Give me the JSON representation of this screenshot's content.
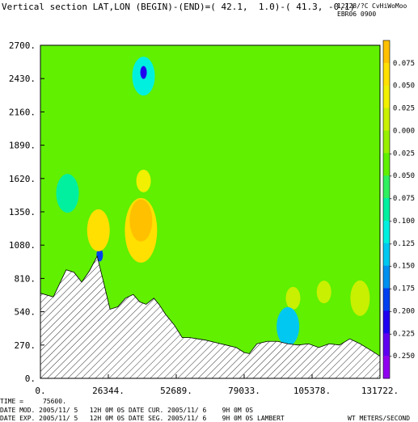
{
  "header": {
    "title": "Vertical section LAT,LON (BEGIN)-(END)=( 42.1,  1.0)-( 41.3, -0.1)",
    "date_code": "12/28/?C",
    "user_code": "CvHiWoMoo",
    "run_code": "EBR06 0900"
  },
  "footer": {
    "time_line": "TIME =     75600.",
    "date_mod": "DATE MOD. 2005/11/ 5   12H 0M 0S",
    "date_cur": "DATE CUR. 2005/11/ 6    9H 0M 0S",
    "date_exp": "DATE EXP. 2005/11/ 5   12H 0M 0S",
    "date_seg": "DATE SEG. 2005/11/ 6    9H 0M 0S",
    "projection": "LAMBERT",
    "variable": "WT METERS/SECOND"
  },
  "chart_data": {
    "type": "heatmap",
    "title": "Vertical section LAT,LON (BEGIN)-(END)=( 42.1,  1.0)-( 41.3, -0.1)",
    "xlabel": "",
    "ylabel": "",
    "units": "WT METERS/SECOND",
    "xlim": [
      0,
      131722
    ],
    "ylim": [
      0,
      2700
    ],
    "x_ticks": [
      0,
      26344,
      52689,
      79033,
      105378,
      131722
    ],
    "x_tick_labels": [
      "0.",
      "26344.",
      "52689.",
      "79033.",
      "105378.",
      "131722."
    ],
    "y_ticks": [
      0,
      270,
      540,
      810,
      1080,
      1350,
      1620,
      1890,
      2160,
      2430,
      2700
    ],
    "y_tick_labels": [
      "0.",
      "270.",
      "540.",
      "810.",
      "1080.",
      "1350.",
      "1620.",
      "1890.",
      "2160.",
      "2430.",
      "2700."
    ],
    "colorbar": {
      "levels": [
        0.075,
        0.05,
        0.025,
        0.0,
        -0.025,
        -0.05,
        -0.075,
        -0.1,
        -0.125,
        -0.15,
        -0.175,
        -0.2,
        -0.225,
        -0.25
      ],
      "labels": [
        "0.075",
        "0.050",
        "0.025",
        "0.000",
        "-0.025",
        "-0.050",
        "-0.075",
        "-0.100",
        "-0.125",
        "-0.150",
        "-0.175",
        "-0.200",
        "-0.225",
        "-0.250"
      ],
      "colors": [
        "#ffc000",
        "#ffe000",
        "#f0f000",
        "#c8f000",
        "#98f000",
        "#60f000",
        "#30f060",
        "#00f0a0",
        "#00f0e0",
        "#00c8f0",
        "#0090f0",
        "#0040f0",
        "#2000f0",
        "#6000f0",
        "#9000f0"
      ]
    },
    "background_value": -0.04,
    "terrain": {
      "x": [
        0,
        5000,
        10000,
        13000,
        16000,
        19000,
        22000,
        24500,
        27000,
        30000,
        33000,
        36000,
        38500,
        41000,
        44000,
        46000,
        48500,
        52000,
        55000,
        58000,
        61000,
        64000,
        68000,
        72000,
        76000,
        79000,
        81000,
        84000,
        88000,
        92000,
        96000,
        100000,
        104000,
        108000,
        112000,
        116000,
        120000,
        124000,
        128000,
        131722
      ],
      "y": [
        690,
        660,
        880,
        860,
        780,
        870,
        990,
        780,
        560,
        580,
        650,
        680,
        620,
        600,
        650,
        600,
        520,
        430,
        330,
        330,
        320,
        310,
        290,
        270,
        250,
        210,
        200,
        280,
        300,
        300,
        280,
        270,
        280,
        250,
        280,
        270,
        320,
        280,
        230,
        180
      ]
    },
    "features": [
      {
        "x": 39000,
        "y": 1200,
        "value": 0.06
      },
      {
        "x": 39000,
        "y": 1280,
        "value": 0.075
      },
      {
        "x": 40000,
        "y": 1600,
        "value": 0.03
      },
      {
        "x": 40000,
        "y": 2450,
        "value": -0.12
      },
      {
        "x": 40000,
        "y": 2480,
        "value": -0.21
      },
      {
        "x": 23000,
        "y": 1000,
        "value": -0.2
      },
      {
        "x": 22500,
        "y": 1200,
        "value": 0.07
      },
      {
        "x": 10500,
        "y": 1500,
        "value": -0.1
      },
      {
        "x": 110000,
        "y": 700,
        "value": 0.02
      },
      {
        "x": 98000,
        "y": 650,
        "value": 0.02
      },
      {
        "x": 124000,
        "y": 650,
        "value": 0.01
      },
      {
        "x": 96000,
        "y": 420,
        "value": -0.13
      }
    ]
  }
}
